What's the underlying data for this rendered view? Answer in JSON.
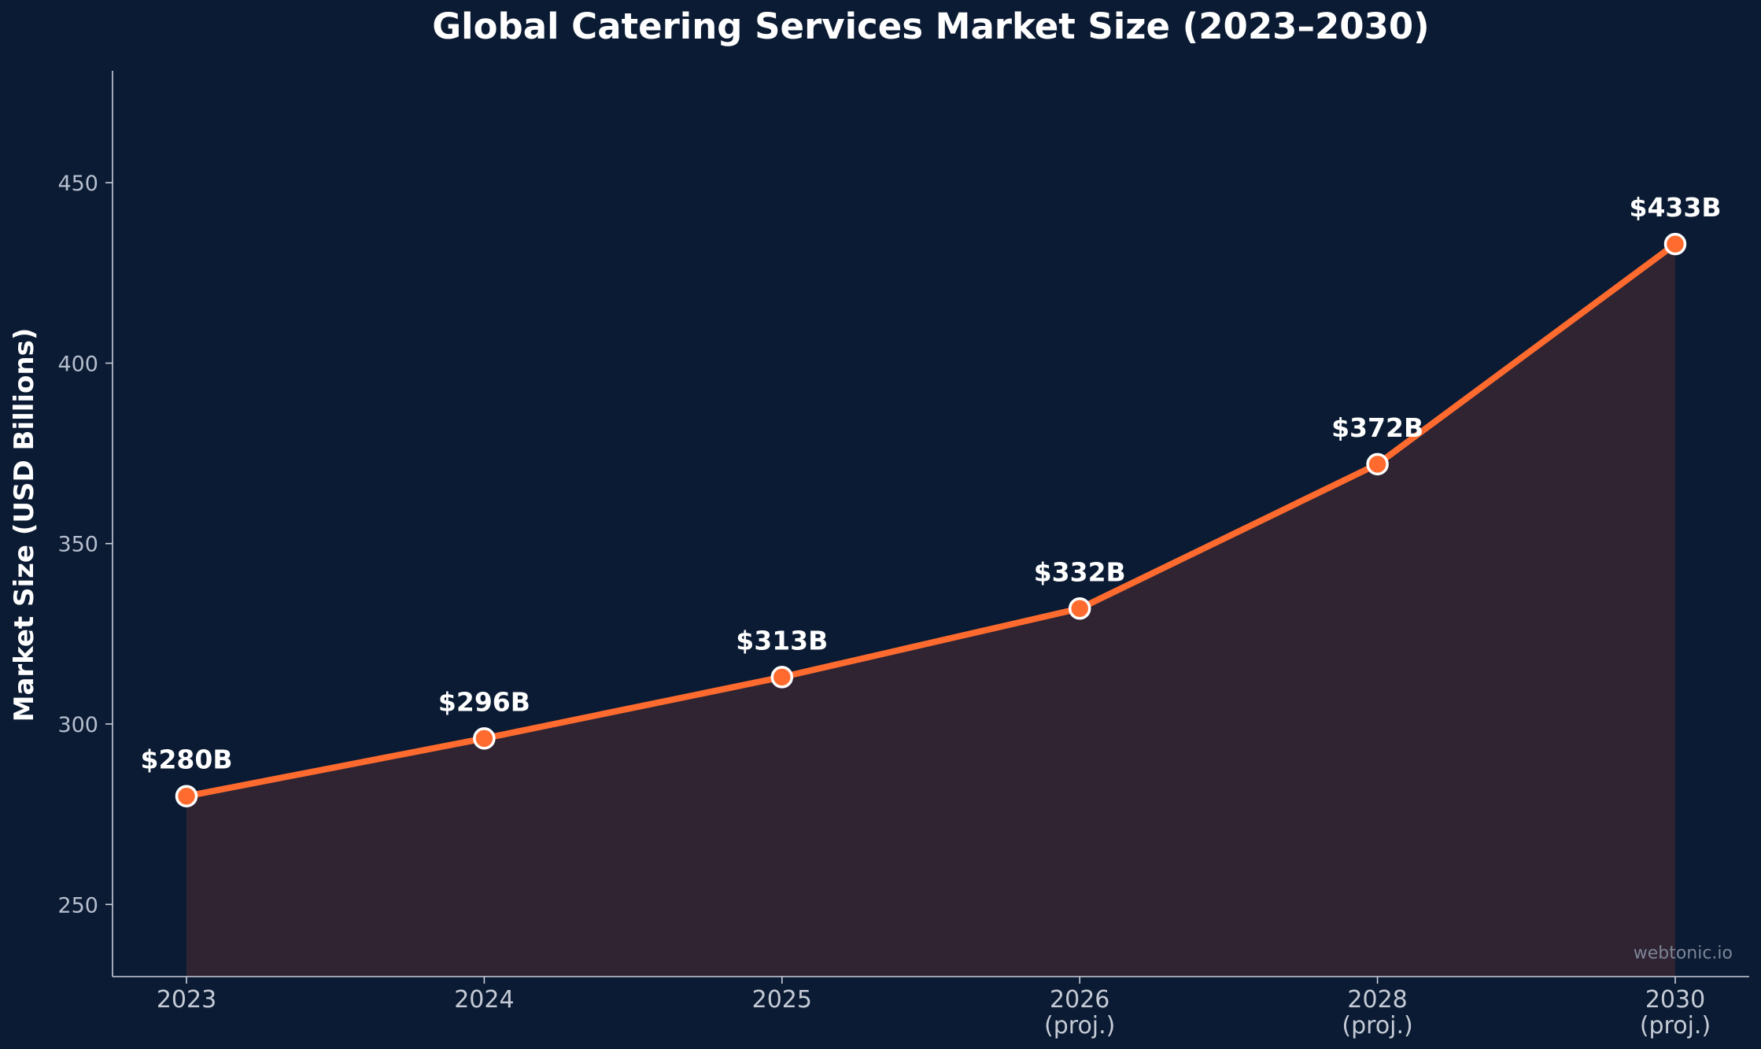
{
  "chart_data": {
    "type": "line",
    "title": "Global Catering Services Market Size (2023–2030)",
    "xlabel": "",
    "ylabel": "Market Size (USD Billions)",
    "categories": [
      "2023",
      "2024",
      "2025",
      "2026",
      "2028",
      "2030"
    ],
    "category_sublabels": [
      "",
      "",
      "",
      "(proj.)",
      "(proj.)",
      "(proj.)"
    ],
    "values": [
      280,
      296,
      313,
      332,
      372,
      433
    ],
    "data_labels": [
      "$280B",
      "$296B",
      "$313B",
      "$332B",
      "$372B",
      "$433B"
    ],
    "ylim": [
      230,
      481
    ],
    "yticks": [
      250,
      300,
      350,
      400,
      450
    ],
    "grid": false,
    "area_fill": true,
    "colors": {
      "background": "#0b1b33",
      "line": "#ff6b2e",
      "area": "#302433",
      "marker_edge": "#ffffff"
    }
  },
  "watermark": "webtonic.io"
}
